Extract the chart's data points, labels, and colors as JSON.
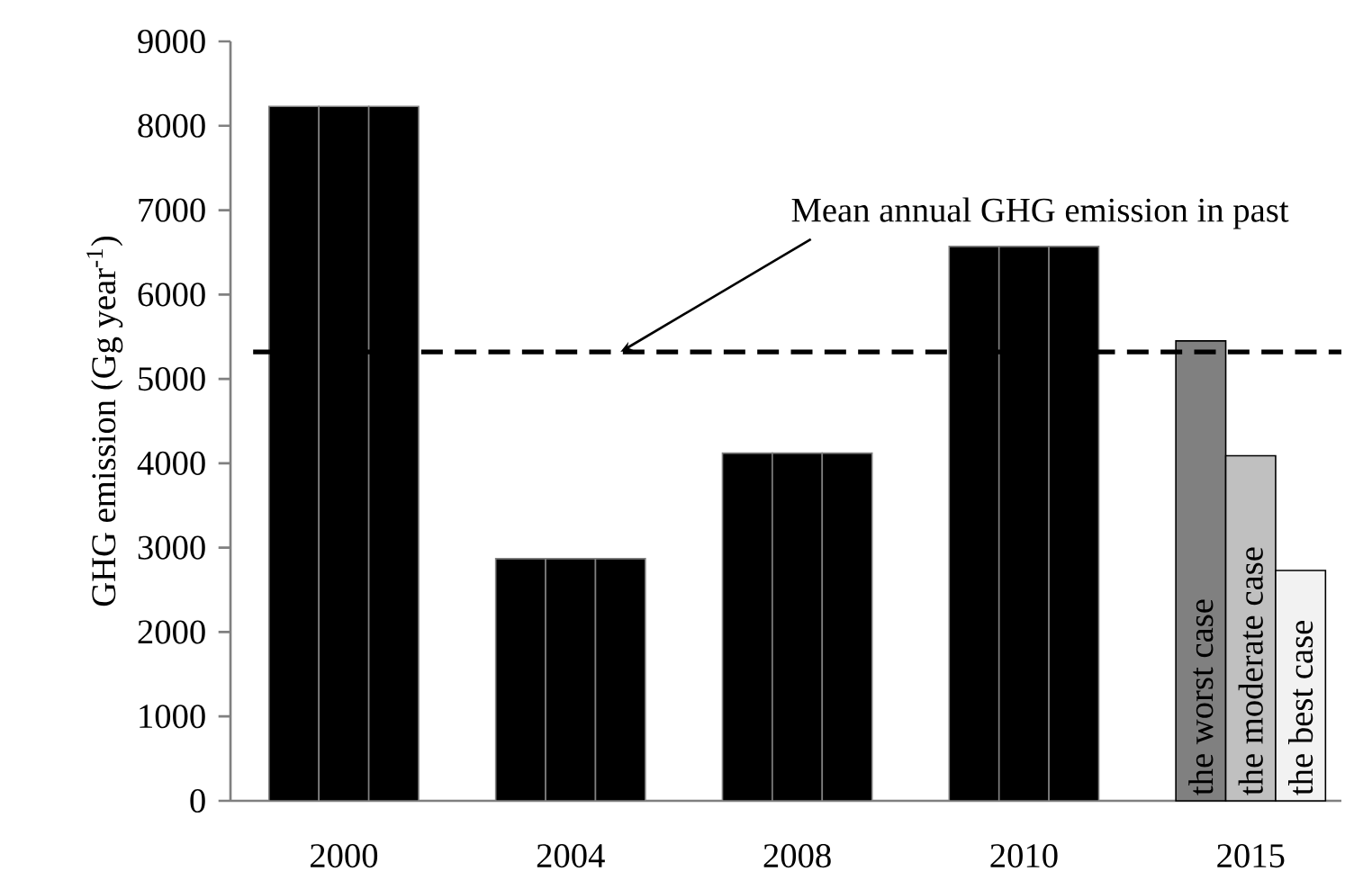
{
  "chart_data": {
    "type": "bar",
    "ylabel": "GHG emission (Gg year$^{-1}$)",
    "categories": [
      "2000",
      "2004",
      "2008",
      "2010",
      "2015"
    ],
    "series": [
      {
        "name": "the worst case",
        "colors": [
          "#000000",
          "#000000",
          "#000000",
          "#000000",
          "#808080"
        ],
        "values": [
          8230,
          2870,
          4120,
          6570,
          5450
        ]
      },
      {
        "name": "the moderate case",
        "colors": [
          "#000000",
          "#000000",
          "#000000",
          "#000000",
          "#c0c0c0"
        ],
        "values": [
          8230,
          2870,
          4120,
          6570,
          4090
        ]
      },
      {
        "name": "the best case",
        "colors": [
          "#000000",
          "#000000",
          "#000000",
          "#000000",
          "#f2f2f2"
        ],
        "values": [
          8230,
          2870,
          4120,
          6570,
          2730
        ]
      }
    ],
    "ylim": [
      0,
      9000
    ],
    "yticks": [
      0,
      1000,
      2000,
      3000,
      4000,
      5000,
      6000,
      7000,
      8000,
      9000
    ],
    "ref_lines": [
      {
        "axis": "y",
        "value": 5320,
        "label": "Mean annual GHG emission in past",
        "color": "#000000",
        "line_style": "dashed"
      }
    ],
    "grid": false
  }
}
